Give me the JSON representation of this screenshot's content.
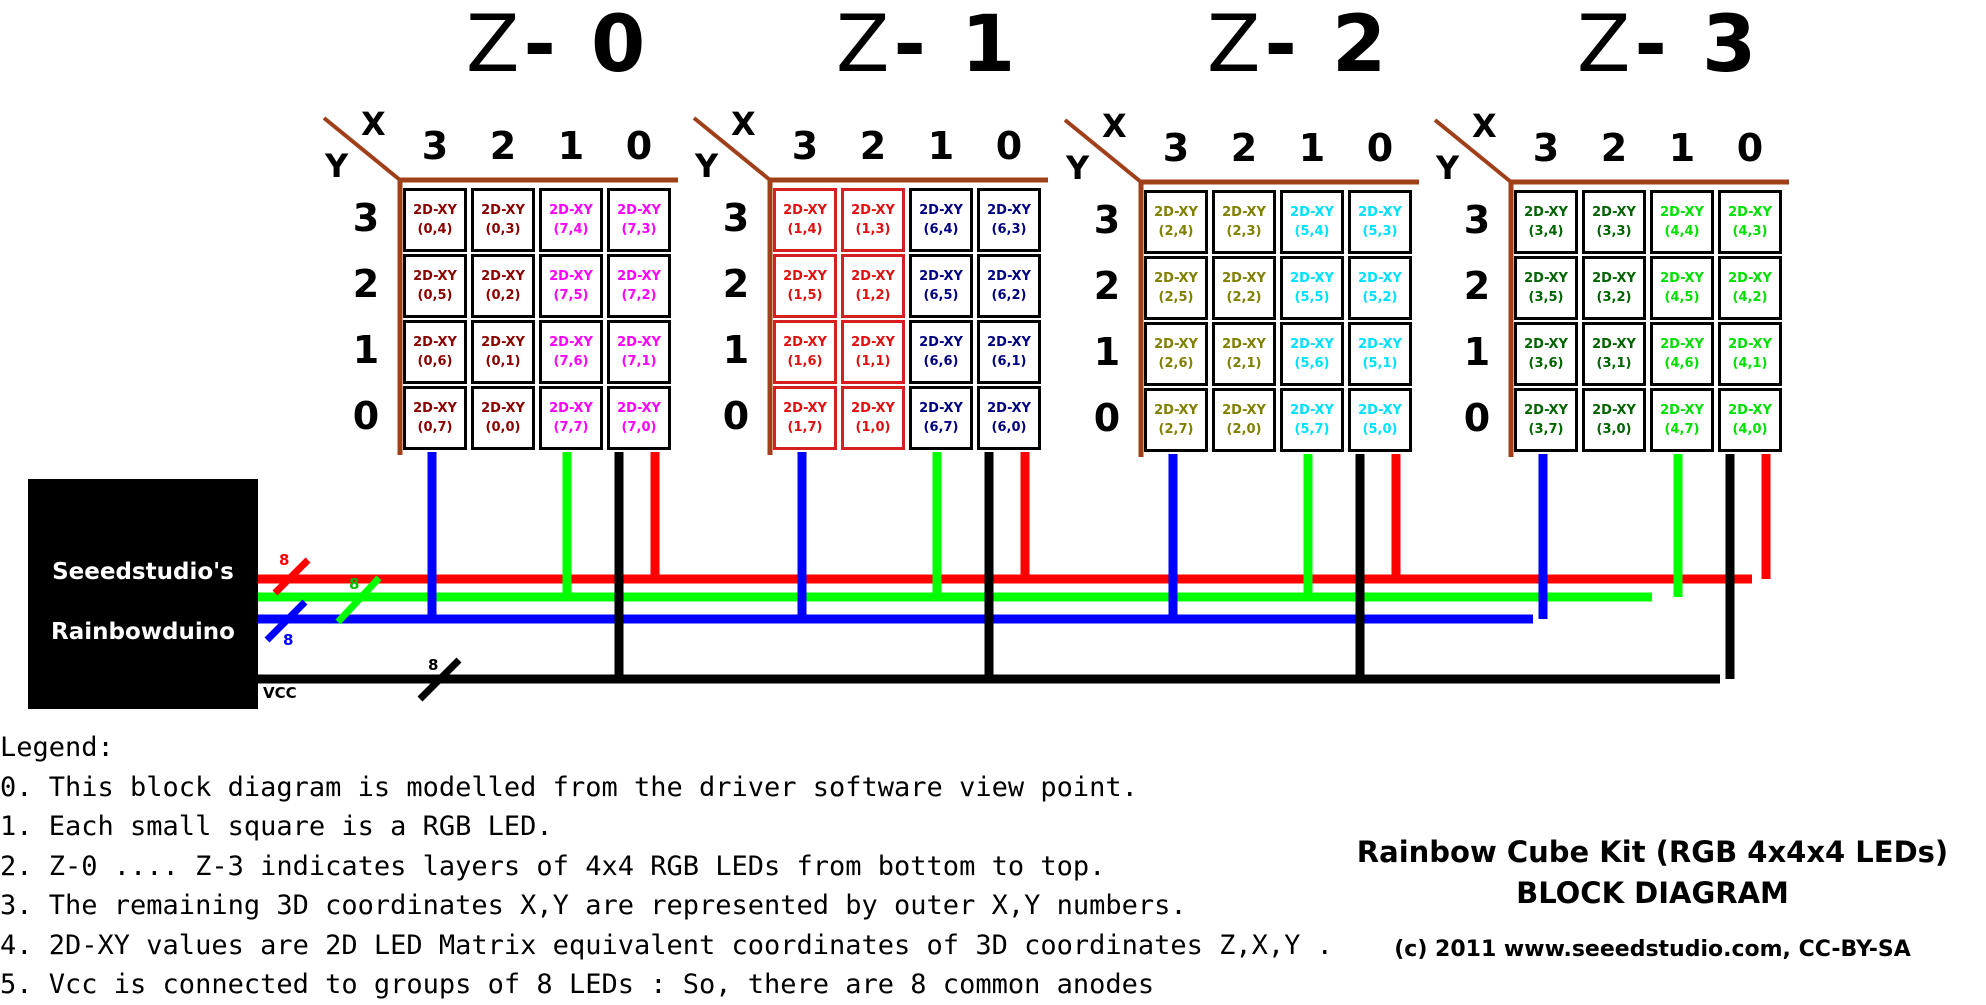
{
  "layers": [
    {
      "prefix": "Z",
      "suffix": "- 0"
    },
    {
      "prefix": "Z",
      "suffix": "- 1"
    },
    {
      "prefix": "Z",
      "suffix": "- 2"
    },
    {
      "prefix": "Z",
      "suffix": "- 3"
    }
  ],
  "axis": {
    "x": "X",
    "y": "Y",
    "col_numbers": [
      "3",
      "2",
      "1",
      "0"
    ],
    "row_numbers": [
      "3",
      "2",
      "1",
      "0"
    ]
  },
  "grid_label": "2D-XY",
  "grids": [
    {
      "rows": [
        [
          "(0,4)",
          "(0,3)",
          "(7,4)",
          "(7,3)"
        ],
        [
          "(0,5)",
          "(0,2)",
          "(7,5)",
          "(7,2)"
        ],
        [
          "(0,6)",
          "(0,1)",
          "(7,6)",
          "(7,1)"
        ],
        [
          "(0,7)",
          "(0,0)",
          "(7,7)",
          "(7,0)"
        ]
      ],
      "colors": [
        "#8b0000",
        "#8b0000",
        "#ff00ff",
        "#ff00ff"
      ],
      "red_border_cols": [
        false,
        false,
        false,
        false
      ]
    },
    {
      "rows": [
        [
          "(1,4)",
          "(1,3)",
          "(6,4)",
          "(6,3)"
        ],
        [
          "(1,5)",
          "(1,2)",
          "(6,5)",
          "(6,2)"
        ],
        [
          "(1,6)",
          "(1,1)",
          "(6,6)",
          "(6,1)"
        ],
        [
          "(1,7)",
          "(1,0)",
          "(6,7)",
          "(6,0)"
        ]
      ],
      "colors": [
        "#e01010",
        "#e01010",
        "#000080",
        "#000080"
      ],
      "red_border_cols": [
        true,
        true,
        false,
        false
      ]
    },
    {
      "rows": [
        [
          "(2,4)",
          "(2,3)",
          "(5,4)",
          "(5,3)"
        ],
        [
          "(2,5)",
          "(2,2)",
          "(5,5)",
          "(5,2)"
        ],
        [
          "(2,6)",
          "(2,1)",
          "(5,6)",
          "(5,1)"
        ],
        [
          "(2,7)",
          "(2,0)",
          "(5,7)",
          "(5,0)"
        ]
      ],
      "colors": [
        "#808000",
        "#808000",
        "#00e0ff",
        "#00e0ff"
      ],
      "red_border_cols": [
        false,
        false,
        false,
        false
      ]
    },
    {
      "rows": [
        [
          "(3,4)",
          "(3,3)",
          "(4,4)",
          "(4,3)"
        ],
        [
          "(3,5)",
          "(3,2)",
          "(4,5)",
          "(4,2)"
        ],
        [
          "(3,6)",
          "(3,1)",
          "(4,6)",
          "(4,1)"
        ],
        [
          "(3,7)",
          "(3,0)",
          "(4,7)",
          "(4,0)"
        ]
      ],
      "colors": [
        "#006400",
        "#006400",
        "#00e000",
        "#00e000"
      ],
      "red_border_cols": [
        false,
        false,
        false,
        false
      ]
    }
  ],
  "controller": {
    "line1": "Seeedstudio's",
    "line2": "Rainbowduino",
    "vcc": "VCC"
  },
  "bus_counts": {
    "red": "8",
    "green": "8",
    "blue": "8",
    "black": "8"
  },
  "wire_colors": {
    "red": "#ff0000",
    "green": "#00ff00",
    "blue": "#0000ff",
    "black": "#000000",
    "axis": "#a0401a"
  },
  "legend": [
    "Legend:",
    "0. This block diagram is modelled from the driver software view point.",
    "1. Each small square is a RGB LED.",
    "2. Z-0 .... Z-3 indicates layers of 4x4 RGB LEDs from bottom to top.",
    "3. The remaining 3D coordinates X,Y are represented by outer X,Y numbers.",
    "4. 2D-XY values are 2D LED Matrix equivalent coordinates of 3D coordinates Z,X,Y .",
    "5. Vcc is connected to groups of 8 LEDs : So, there are 8 common anodes"
  ],
  "kit": {
    "title": "Rainbow Cube Kit (RGB 4x4x4 LEDs)",
    "subtitle": "BLOCK DIAGRAM",
    "copyright": "(c) 2011 www.seeedstudio.com, CC-BY-SA"
  }
}
